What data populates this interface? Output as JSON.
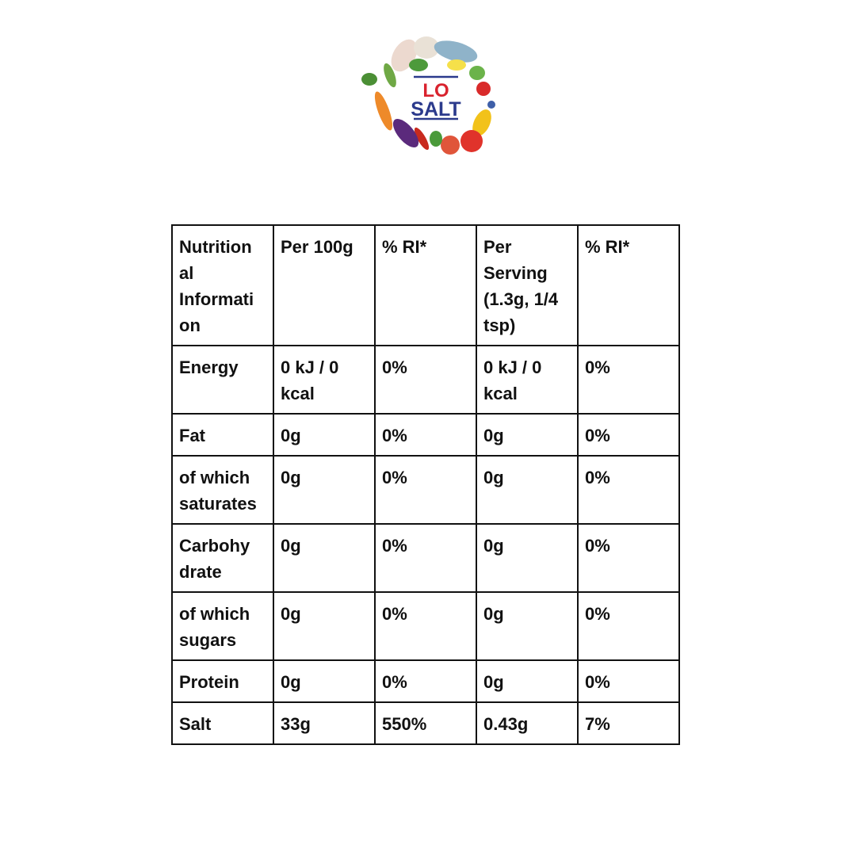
{
  "logo": {
    "line1": "LO",
    "line2": "SALT",
    "colors": {
      "red": "#d9232e",
      "navy": "#2b3a8c"
    }
  },
  "table": {
    "header": [
      "Nutrition\nal\nInformati\non",
      "Per 100g",
      "% RI*",
      "Per\nServing\n(1.3g, 1/4\ntsp)",
      "% RI*"
    ],
    "rows": [
      [
        "Energy",
        "0 kJ / 0\nkcal",
        "0%",
        "0 kJ / 0\nkcal",
        "0%"
      ],
      [
        "Fat",
        "0g",
        "0%",
        "0g",
        "0%"
      ],
      [
        "of which\nsaturates",
        "0g",
        "0%",
        "0g",
        "0%"
      ],
      [
        "Carbohy\ndrate",
        "0g",
        "0%",
        "0g",
        "0%"
      ],
      [
        "of which\nsugars",
        "0g",
        "0%",
        "0g",
        "0%"
      ],
      [
        "Protein",
        "0g",
        "0%",
        "0g",
        "0%"
      ],
      [
        "Salt",
        "33g",
        "550%",
        "0.43g",
        "7%"
      ]
    ]
  }
}
